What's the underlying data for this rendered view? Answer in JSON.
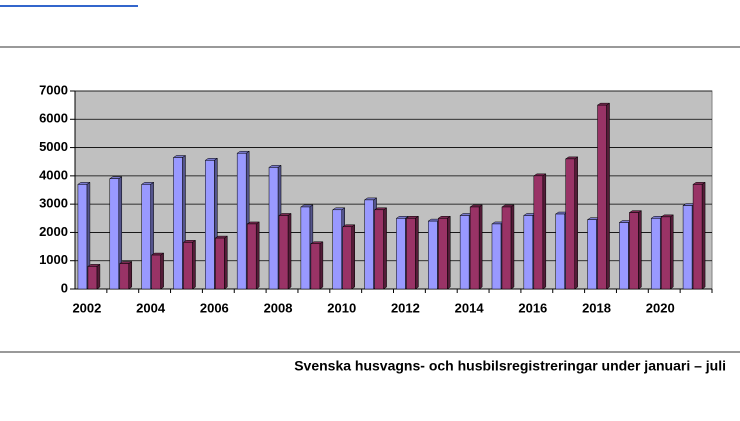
{
  "chart_data": {
    "type": "bar",
    "caption": "Svenska husvagns- och husbilsregistreringar under januari – juli",
    "categories": [
      2002,
      null,
      2004,
      null,
      2006,
      null,
      2008,
      null,
      2010,
      null,
      2012,
      null,
      2014,
      null,
      2016,
      null,
      2018,
      null,
      2020,
      null
    ],
    "series": [
      {
        "color": "#9999ff",
        "values": [
          3700,
          3900,
          3700,
          4650,
          4550,
          4800,
          4300,
          2900,
          2800,
          3150,
          2500,
          2400,
          2600,
          2300,
          2600,
          2650,
          2450,
          2350,
          2500,
          2950
        ]
      },
      {
        "color": "#993366",
        "values": [
          800,
          900,
          1200,
          1650,
          1800,
          2300,
          2600,
          1600,
          2200,
          2800,
          2500,
          2500,
          2900,
          2900,
          4000,
          4600,
          6500,
          2700,
          2550,
          3700
        ]
      }
    ],
    "ylim": [
      0,
      7000
    ],
    "yticks": [
      0,
      1000,
      2000,
      3000,
      4000,
      5000,
      6000,
      7000
    ],
    "grid": true,
    "background": "#c0c0c0"
  }
}
